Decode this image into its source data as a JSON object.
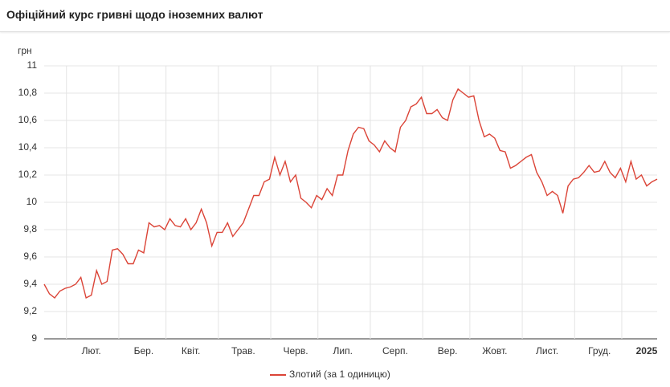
{
  "header": {
    "title": "Офіційний курс гривні щодо іноземних валют"
  },
  "chart_data": {
    "type": "line",
    "y_label": "грн",
    "categories": [
      null,
      null,
      null,
      null,
      null,
      null,
      null,
      null,
      null,
      "Лют.",
      null,
      null,
      null,
      null,
      null,
      null,
      null,
      null,
      null,
      "Бер.",
      null,
      null,
      null,
      null,
      null,
      null,
      null,
      null,
      "Квіт.",
      null,
      null,
      null,
      null,
      null,
      null,
      null,
      null,
      null,
      "Трав.",
      null,
      null,
      null,
      null,
      null,
      null,
      null,
      null,
      null,
      "Черв.",
      null,
      null,
      null,
      null,
      null,
      null,
      null,
      null,
      "Лип.",
      null,
      null,
      null,
      null,
      null,
      null,
      null,
      null,
      null,
      "Серп.",
      null,
      null,
      null,
      null,
      null,
      null,
      null,
      null,
      null,
      "Вер.",
      null,
      null,
      null,
      null,
      null,
      null,
      null,
      null,
      "Жовт.",
      null,
      null,
      null,
      null,
      null,
      null,
      null,
      null,
      null,
      "Лист.",
      null,
      null,
      null,
      null,
      null,
      null,
      null,
      null,
      null,
      "Груд.",
      null,
      null,
      null,
      null,
      null,
      null,
      null,
      null,
      "2025",
      null,
      null
    ],
    "series": [
      {
        "name": "Злотий (за 1 одиницю)",
        "color": "#db4437",
        "values": [
          9.4,
          9.33,
          9.3,
          9.35,
          9.37,
          9.38,
          9.4,
          9.45,
          9.3,
          9.32,
          9.5,
          9.4,
          9.42,
          9.65,
          9.66,
          9.62,
          9.55,
          9.55,
          9.65,
          9.63,
          9.85,
          9.82,
          9.83,
          9.8,
          9.88,
          9.83,
          9.82,
          9.88,
          9.8,
          9.85,
          9.95,
          9.85,
          9.68,
          9.78,
          9.78,
          9.85,
          9.75,
          9.8,
          9.85,
          9.95,
          10.05,
          10.05,
          10.15,
          10.17,
          10.33,
          10.2,
          10.3,
          10.15,
          10.2,
          10.03,
          10.0,
          9.96,
          10.05,
          10.02,
          10.1,
          10.05,
          10.2,
          10.2,
          10.38,
          10.5,
          10.55,
          10.54,
          10.45,
          10.42,
          10.37,
          10.45,
          10.4,
          10.37,
          10.55,
          10.6,
          10.7,
          10.72,
          10.77,
          10.65,
          10.65,
          10.68,
          10.62,
          10.6,
          10.75,
          10.83,
          10.8,
          10.77,
          10.78,
          10.6,
          10.48,
          10.5,
          10.47,
          10.38,
          10.37,
          10.25,
          10.27,
          10.3,
          10.33,
          10.35,
          10.22,
          10.15,
          10.05,
          10.08,
          10.05,
          9.92,
          10.12,
          10.17,
          10.18,
          10.22,
          10.27,
          10.22,
          10.23,
          10.3,
          10.22,
          10.18,
          10.25,
          10.15,
          10.3,
          10.17,
          10.2,
          10.12,
          10.15,
          10.17
        ]
      }
    ],
    "ylim": [
      9,
      11
    ],
    "yticks": [
      9,
      {
        "value": 9.2,
        "label": "9,2"
      },
      {
        "value": 9.4,
        "label": "9,4"
      },
      {
        "value": 9.6,
        "label": "9,6"
      },
      {
        "value": 9.8,
        "label": "9,8"
      },
      10,
      {
        "value": 10.2,
        "label": "10,2"
      },
      {
        "value": 10.4,
        "label": "10,4"
      },
      {
        "value": 10.6,
        "label": "10,6"
      },
      {
        "value": 10.8,
        "label": "10,8"
      },
      11
    ],
    "grid": true,
    "legend": "bottom"
  }
}
